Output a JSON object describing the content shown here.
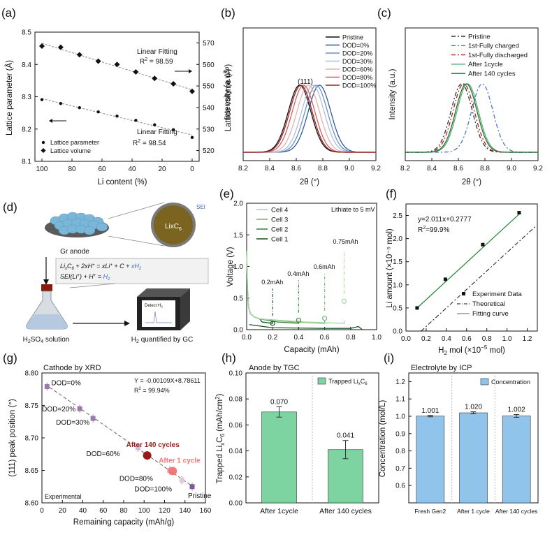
{
  "panel_labels": [
    "(a)",
    "(b)",
    "(c)",
    "(d)",
    "(e)",
    "(f)",
    "(g)",
    "(h)",
    "(i)"
  ],
  "chart_data": [
    {
      "id": "a",
      "type": "scatter",
      "xlabel": "Li content (%)",
      "ylabel_left": "Lattice parameter (Å)",
      "ylabel_right": "Lattice volume (Å³)",
      "xlim": [
        100,
        0
      ],
      "ylim_left": [
        8.1,
        8.5
      ],
      "ylim_right": [
        515,
        575
      ],
      "xticks": [
        "100",
        "80",
        "60",
        "40",
        "20",
        "0"
      ],
      "yticks_left": [
        "8.1",
        "8.2",
        "8.3",
        "8.4",
        "8.5"
      ],
      "yticks_right": [
        "520",
        "530",
        "540",
        "550",
        "560",
        "570"
      ],
      "series": [
        {
          "name": "Lattice parameter",
          "axis": "left",
          "marker": "dot",
          "x": [
            100,
            87.5,
            75,
            62.5,
            50,
            37.5,
            25,
            12.5,
            0
          ],
          "y": [
            8.291,
            8.279,
            8.266,
            8.253,
            8.24,
            8.227,
            8.213,
            8.198,
            8.174
          ]
        },
        {
          "name": "Lattice volume",
          "axis": "right",
          "marker": "diamond",
          "x": [
            100,
            87.5,
            75,
            62.5,
            50,
            37.5,
            25,
            12.5,
            0
          ],
          "y": [
            568.5,
            568.0,
            564.5,
            561.5,
            560.0,
            556.5,
            553.5,
            551.0,
            547.5
          ]
        }
      ],
      "annotations": [
        {
          "line1": "Linear Fitting",
          "line2": "R",
          "sup": "2",
          "line2b": " = 98.59"
        },
        {
          "line1": "Linear Fitting",
          "line2": "R",
          "sup": "2",
          "line2b": " = 98.54"
        }
      ]
    },
    {
      "id": "b",
      "type": "line",
      "xlabel": "2θ (°)",
      "ylabel_line1": "Lattice volume (Å³)",
      "ylabel_line2": "Intensity (a.u.)",
      "xlim": [
        8.2,
        9.2
      ],
      "xticks": [
        "8.2",
        "8.4",
        "8.6",
        "8.8",
        "9.0",
        "9.2"
      ],
      "peak_label": "(111)",
      "series": [
        {
          "name": "Pristine",
          "color": "#111111",
          "center": 8.625,
          "width": 0.085
        },
        {
          "name": "DOD=0%",
          "color": "#2e5a9a",
          "center": 8.775,
          "width": 0.085
        },
        {
          "name": "DOD=20%",
          "color": "#6a8fc8",
          "center": 8.75,
          "width": 0.085
        },
        {
          "name": "DOD=30%",
          "color": "#aebfdd",
          "center": 8.725,
          "width": 0.085
        },
        {
          "name": "DOD=60%",
          "color": "#e8b0b0",
          "center": 8.69,
          "width": 0.085
        },
        {
          "name": "DOD=80%",
          "color": "#d06060",
          "center": 8.655,
          "width": 0.085
        },
        {
          "name": "DOD=100%",
          "color": "#a02020",
          "center": 8.635,
          "width": 0.085
        }
      ]
    },
    {
      "id": "c",
      "type": "line",
      "xlabel": "2θ (°)",
      "ylabel": "Intensity (a.u.)",
      "xlim": [
        8.2,
        9.2
      ],
      "xticks": [
        "8.2",
        "8.4",
        "8.6",
        "8.8",
        "9.0",
        "9.2"
      ],
      "series": [
        {
          "name": "Pristine",
          "color": "#333333",
          "dash": "6 3 2 3",
          "center": 8.625,
          "width": 0.08
        },
        {
          "name": "1st-Fully charged",
          "color": "#4a78c0",
          "dash": "6 3 2 3",
          "center": 8.78,
          "width": 0.08
        },
        {
          "name": "1st-Fully discharged",
          "color": "#b02020",
          "dash": "6 3 2 3",
          "center": 8.64,
          "width": 0.08
        },
        {
          "name": "After 1cycle",
          "color": "#58b070",
          "dash": "",
          "center": 8.67,
          "width": 0.08
        },
        {
          "name": "After 140 cycles",
          "color": "#2a6a3a",
          "dash": "",
          "center": 8.66,
          "width": 0.08
        }
      ]
    },
    {
      "id": "e",
      "type": "line",
      "xlabel": "Capacity (mAh)",
      "ylabel": "Voltage (V)",
      "xlim": [
        0,
        1.0
      ],
      "ylim": [
        0,
        2.0
      ],
      "xticks": [
        "0.0",
        "0.2",
        "0.4",
        "0.6",
        "0.8",
        "1.0"
      ],
      "yticks": [
        "0.0",
        "0.5",
        "1.0",
        "1.5",
        "2.0"
      ],
      "note": "Lithiate to 5 mV",
      "series": [
        {
          "name": "Cell 4",
          "color": "#a8d4a8",
          "capacity": 0.75
        },
        {
          "name": "Cell 3",
          "color": "#78b878",
          "capacity": 0.6
        },
        {
          "name": "Cell 2",
          "color": "#3c8c3c",
          "capacity": 0.4
        },
        {
          "name": "Cell 1",
          "color": "#1e5a2a",
          "capacity": 0.2
        }
      ],
      "labels": [
        "0.2mAh",
        "0.4mAh",
        "0.6mAh",
        "0.75mAh"
      ]
    },
    {
      "id": "f",
      "type": "scatter",
      "xlabel_pre": "H",
      "xlabel_sub": "2",
      "xlabel_post": " mol (×10",
      "xlabel_sup": "−5",
      "xlabel_end": " mol)",
      "ylabel": "Li amount (×10⁻⁵ mol)",
      "xlim": [
        0,
        1.3
      ],
      "ylim": [
        0,
        2.75
      ],
      "xticks": [
        "0.0",
        "0.2",
        "0.4",
        "0.6",
        "0.8",
        "1.0",
        "1.2"
      ],
      "yticks": [
        "0.0",
        "0.5",
        "1.0",
        "1.5",
        "2.0",
        "2.5"
      ],
      "equation": "y=2.011x+0.2777",
      "r2": "=99.9%",
      "series": [
        {
          "name": "Experiment Data",
          "x": [
            0.11,
            0.39,
            0.76,
            1.12
          ],
          "y": [
            0.5,
            1.12,
            1.87,
            2.56
          ]
        },
        {
          "name": "Theoretical",
          "x": [
            0.15,
            1.28
          ],
          "y": [
            0.0,
            2.26
          ]
        },
        {
          "name": "Fitting curve",
          "x": [
            0.11,
            1.12
          ],
          "y": [
            0.499,
            2.53
          ]
        }
      ]
    },
    {
      "id": "g",
      "type": "scatter",
      "title": "Cathode by XRD",
      "xlabel": "Remaining capacity (mAh/g)",
      "ylabel": "(111) peak position (°)",
      "xlim": [
        0,
        160
      ],
      "ylim": [
        8.6,
        8.8
      ],
      "xticks": [
        "0",
        "20",
        "40",
        "60",
        "80",
        "100",
        "120",
        "140",
        "160"
      ],
      "yticks": [
        "8.60",
        "8.65",
        "8.70",
        "8.75",
        "8.80"
      ],
      "equation": "Y = -0.00109X+8.78611",
      "r2": " = 99.94%",
      "corner_label": "Experimental",
      "points": [
        {
          "label": "DOD=0%",
          "x": 5,
          "y": 8.779,
          "color": "#9a7ab0"
        },
        {
          "label": "DOD=20%",
          "x": 37,
          "y": 8.745,
          "color": "#9a7ab0"
        },
        {
          "label": "DOD=30%",
          "x": 50,
          "y": 8.73,
          "color": "#9a7ab0"
        },
        {
          "label": "DOD=60%",
          "x": 94,
          "y": 8.685,
          "color": "#d8b8d0"
        },
        {
          "label": "DOD=80%",
          "x": 125,
          "y": 8.65,
          "color": "#e8a0a0"
        },
        {
          "label": "DOD=100%",
          "x": 137,
          "y": 8.635,
          "color": "#e8c8d8"
        },
        {
          "label": "Pristine",
          "x": 147,
          "y": 8.625,
          "color": "#7a5a9a"
        }
      ],
      "cycle_points": [
        {
          "label": "After 140 cycles",
          "x": 103,
          "y": 8.673,
          "color": "#9a1a1a"
        },
        {
          "label": "After 1 cycle",
          "x": 128,
          "y": 8.649,
          "color": "#f07878"
        }
      ]
    },
    {
      "id": "h",
      "type": "bar",
      "title": "Anode by TGC",
      "ylabel": "Trapped LixC6 (mAh/cm²)",
      "categories": [
        "After 1cycle",
        "After 140 cycles"
      ],
      "values": [
        0.07,
        0.041
      ],
      "errors": [
        0.004,
        0.007
      ],
      "value_labels": [
        "0.070",
        "0.041"
      ],
      "legend": "Trapped LixC6",
      "ylim": [
        0,
        0.1
      ],
      "yticks": [
        "0.00",
        "0.02",
        "0.04",
        "0.06",
        "0.08",
        "0.10"
      ],
      "color": "#7ed4a0"
    },
    {
      "id": "i",
      "type": "bar",
      "title": "Electrolyte by ICP",
      "ylabel": "Concentration (mol/L)",
      "categories": [
        "Fresh Gen2",
        "After 1 cycle",
        "After 140 cycles"
      ],
      "values": [
        1.001,
        1.02,
        1.002
      ],
      "errors": [
        0.004,
        0.006,
        0.008
      ],
      "value_labels": [
        "1.001",
        "1.020",
        "1.002"
      ],
      "legend": "Concentration",
      "ylim": [
        0.5,
        1.25
      ],
      "yticks": [
        "0.6",
        "0.7",
        "0.8",
        "0.9",
        "1.0",
        "1.1",
        "1.2"
      ],
      "color": "#90c4ea"
    }
  ],
  "schematic": {
    "gr_anode": "Gr anode",
    "sei": "SEI",
    "particle_label": "LixC6",
    "reaction1": "LixC6 + 2xH⁺ = xLi⁺ + C + xH₂",
    "reaction2": "SEI(Li⁺) + H⁺ = H₂",
    "solution": "H₂SO₄ solution",
    "gc": "H₂ quantified by GC",
    "detect": "Detect H₂"
  },
  "colors": {
    "green_bar": "#7ed4a0",
    "blue_bar": "#90c4ea",
    "axis": "#111111"
  }
}
